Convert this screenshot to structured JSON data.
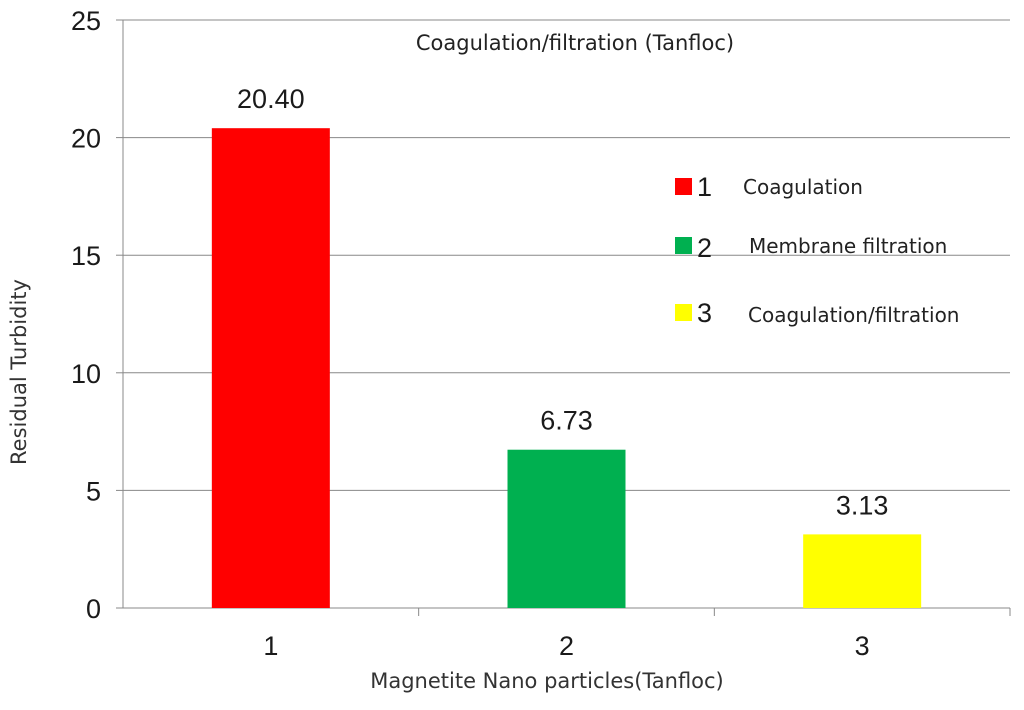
{
  "chart_data": {
    "type": "bar",
    "title": "Coagulation/filtration (Tanfloc)",
    "xlabel": "Magnetite Nano particles(Tanfloc)",
    "ylabel": "Residual Turbidity",
    "categories": [
      "1",
      "2",
      "3"
    ],
    "values": [
      20.4,
      6.73,
      3.13
    ],
    "data_labels": [
      "20.40",
      "6.73",
      "3.13"
    ],
    "colors": [
      "#ff0000",
      "#00b050",
      "#ffff00"
    ],
    "ylim": [
      0,
      25
    ],
    "yticks": [
      "0",
      "5",
      "10",
      "15",
      "20",
      "25"
    ],
    "grid": true,
    "legend_position": "right",
    "legend": [
      {
        "number": "1",
        "label": "Coagulation",
        "color": "#ff0000"
      },
      {
        "number": "2",
        "label": "Membrane filtration",
        "color": "#00b050"
      },
      {
        "number": "3",
        "label": "Coagulation/filtration",
        "color": "#ffff00"
      }
    ]
  }
}
